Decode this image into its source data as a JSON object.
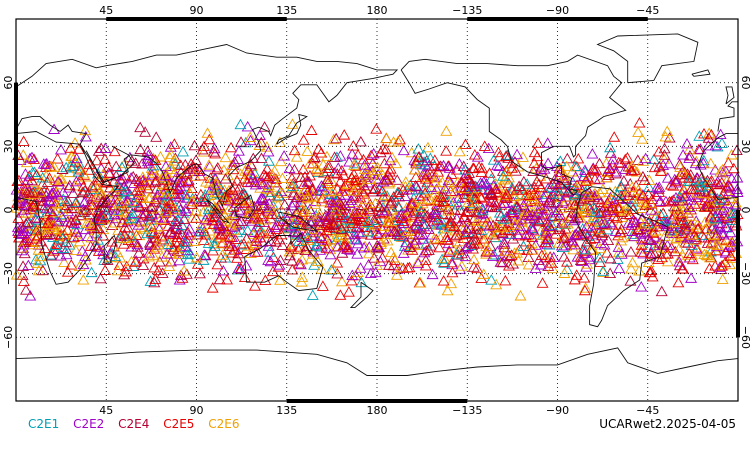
{
  "map": {
    "projection": "cylindrical",
    "lon_range": [
      0,
      360
    ],
    "lat_range": [
      -90,
      90
    ],
    "top_lon_labels": [
      "45",
      "90",
      "135",
      "180",
      "−135",
      "−90",
      "−45"
    ],
    "bottom_lon_labels": [
      "45",
      "90",
      "135",
      "180",
      "−135",
      "−90",
      "−45"
    ],
    "left_lat_labels": [
      "60",
      "30",
      "0",
      "−30",
      "−60"
    ],
    "right_lat_labels": [
      "60",
      "30",
      "0",
      "−30",
      "−60"
    ],
    "gridlines": "dotted",
    "marker": "triangle-outline",
    "marker_lat_extent": [
      -45,
      45
    ]
  },
  "legend": [
    {
      "label": "C2E1",
      "color": "#00a0b4"
    },
    {
      "label": "C2E2",
      "color": "#a000c8"
    },
    {
      "label": "C2E4",
      "color": "#b40032"
    },
    {
      "label": "C2E5",
      "color": "#e60000"
    },
    {
      "label": "C2E6",
      "color": "#f0a000"
    }
  ],
  "footer": {
    "label": "UCARwet2.2025-04-05"
  }
}
